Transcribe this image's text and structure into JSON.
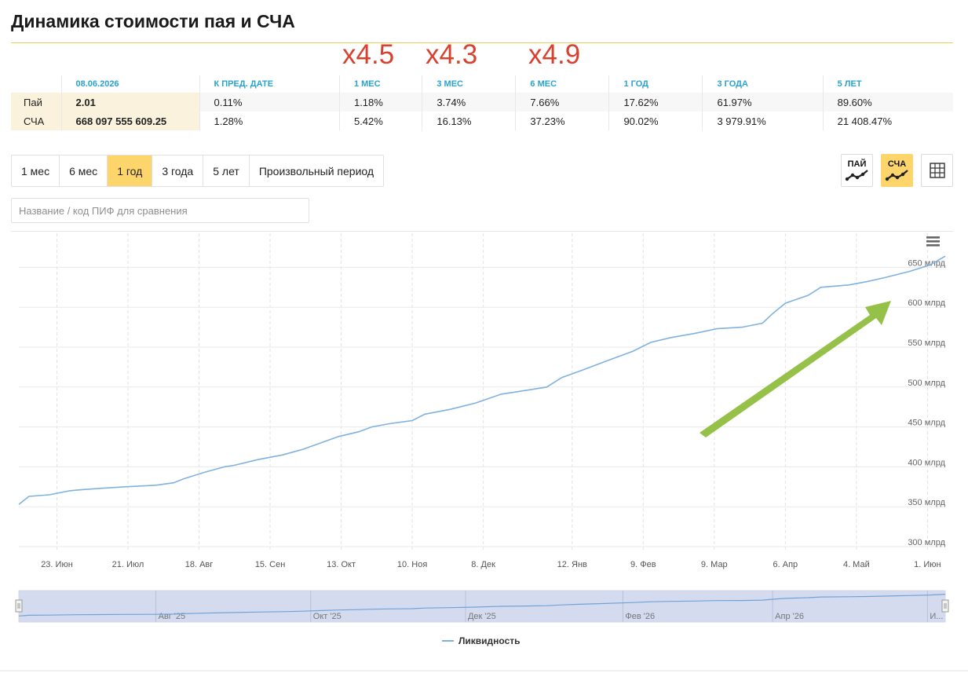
{
  "title": "Динамика стоимости пая и СЧА",
  "multipliers": [
    "x4.5",
    "x4.3",
    "x4.9"
  ],
  "stats": {
    "headers": [
      "08.06.2026",
      "К ПРЕД. ДАТЕ",
      "1 МЕС",
      "3 МЕС",
      "6 МЕС",
      "1 ГОД",
      "3 ГОДА",
      "5 ЛЕТ"
    ],
    "rows": [
      {
        "label": "Пай",
        "values": [
          "2.01",
          "0.11%",
          "1.18%",
          "3.74%",
          "7.66%",
          "17.62%",
          "61.97%",
          "89.60%"
        ]
      },
      {
        "label": "СЧА",
        "values": [
          "668 097 555 609.25",
          "1.28%",
          "5.42%",
          "16.13%",
          "37.23%",
          "90.02%",
          "3 979.91%",
          "21 408.47%"
        ]
      }
    ]
  },
  "periods": [
    "1 мес",
    "6 мес",
    "1 год",
    "3 года",
    "5 лет",
    "Произвольный период"
  ],
  "active_period": "1 год",
  "view_buttons": {
    "pai": "ПАЙ",
    "scha": "СЧА",
    "active": "СЧА"
  },
  "compare_placeholder": "Название / код ПИФ для сравнения",
  "colors": {
    "accent": "#fdd56b",
    "header_blue": "#2aa3cc",
    "line": "#7fb2e0",
    "multiplier_red": "#d9412f",
    "arrow_green": "#8fbe3f"
  },
  "chart_data": {
    "type": "line",
    "y_unit": "млрд",
    "y_ticks": [
      "300 млрд",
      "350 млрд",
      "400 млрд",
      "450 млрд",
      "500 млрд",
      "550 млрд",
      "600 млрд",
      "650 млрд"
    ],
    "ylim": [
      300,
      660
    ],
    "x_ticks": [
      "23. Июн",
      "21. Июл",
      "18. Авг",
      "15. Сен",
      "13. Окт",
      "10. Ноя",
      "8. Дек",
      "12. Янв",
      "9. Фев",
      "9. Мар",
      "6. Апр",
      "4. Май",
      "1. Июн"
    ],
    "navigator_labels": [
      "Авг '25",
      "Окт '25",
      "Дек '25",
      "Фев '26",
      "Апр '26",
      "И..."
    ],
    "legend": "Ликвидность",
    "annotation": "green-trend-arrow",
    "series": [
      {
        "name": "Ликвидность",
        "x": [
          "2025-06-08",
          "2025-06-12",
          "2025-06-20",
          "2025-06-28",
          "2025-07-01",
          "2025-07-10",
          "2025-07-20",
          "2025-08-01",
          "2025-08-08",
          "2025-08-12",
          "2025-08-20",
          "2025-08-28",
          "2025-09-01",
          "2025-09-10",
          "2025-09-20",
          "2025-09-28",
          "2025-10-05",
          "2025-10-12",
          "2025-10-20",
          "2025-10-25",
          "2025-11-01",
          "2025-11-10",
          "2025-11-15",
          "2025-11-25",
          "2025-12-05",
          "2025-12-15",
          "2025-12-25",
          "2026-01-02",
          "2026-01-08",
          "2026-01-15",
          "2026-01-25",
          "2026-02-05",
          "2026-02-12",
          "2026-02-20",
          "2026-03-01",
          "2026-03-10",
          "2026-03-20",
          "2026-03-28",
          "2026-04-01",
          "2026-04-06",
          "2026-04-15",
          "2026-04-20",
          "2026-05-01",
          "2026-05-08",
          "2026-05-15",
          "2026-05-25",
          "2026-06-02",
          "2026-06-08"
        ],
        "values": [
          353,
          363,
          365,
          370,
          371,
          373,
          375,
          377,
          380,
          385,
          393,
          400,
          402,
          409,
          415,
          422,
          430,
          438,
          444,
          450,
          454,
          458,
          466,
          472,
          480,
          491,
          496,
          500,
          512,
          520,
          532,
          545,
          556,
          562,
          567,
          573,
          575,
          580,
          592,
          605,
          615,
          625,
          628,
          632,
          637,
          645,
          653,
          664
        ]
      }
    ]
  }
}
